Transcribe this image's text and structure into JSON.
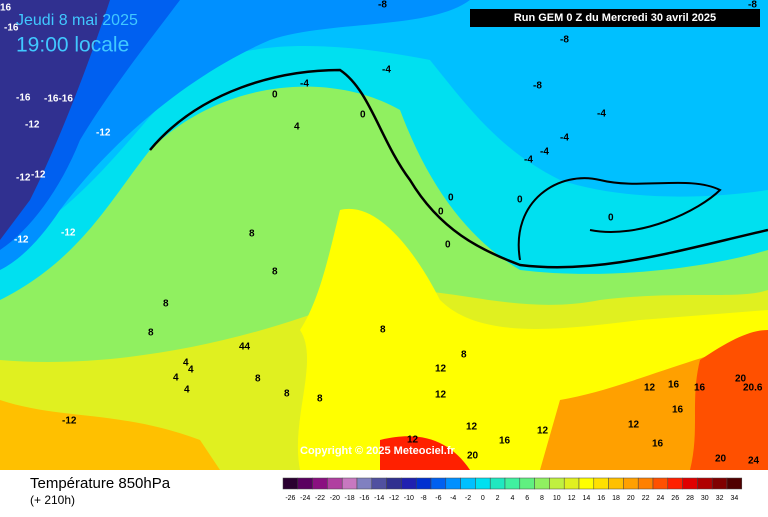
{
  "header": {
    "date": "Jeudi 8 mai 2025",
    "time": "19:00 locale",
    "run": "Run GEM 0 Z du Mercredi 30 avril 2025"
  },
  "map": {
    "copyright": "Copyright © 2025 Meteociel.fr",
    "labels": [
      "16",
      "-16",
      "-8",
      "-8",
      "-8",
      "-8",
      "-4",
      "-4",
      "-16",
      "-16-16",
      "-12",
      "-12",
      "-12",
      "-12",
      "-12",
      "-12",
      "0",
      "0",
      "4",
      "0",
      "-4",
      "-4",
      "-4",
      "-4",
      "0",
      "0",
      "0",
      "0",
      "8",
      "8",
      "8",
      "8",
      "4",
      "4",
      "4",
      "4",
      "44",
      "8",
      "8",
      "8",
      "8",
      "8",
      "12",
      "12",
      "12",
      "12",
      "12",
      "16",
      "16",
      "16",
      "16",
      "20",
      "20",
      "24",
      "20.6",
      "16",
      "12",
      "-12",
      "12",
      "20"
    ]
  },
  "legend": {
    "title": "Température 850hPa",
    "subtitle": "(+ 210h)",
    "scale": {
      "values": [
        -26,
        -24,
        -22,
        -20,
        -18,
        -16,
        -14,
        -12,
        -10,
        -8,
        -6,
        -4,
        -2,
        0,
        2,
        4,
        6,
        8,
        10,
        12,
        14,
        16,
        18,
        20,
        22,
        24,
        26,
        28,
        30,
        32,
        34
      ],
      "colors": [
        "#2a0030",
        "#5a0060",
        "#8a1080",
        "#b040a0",
        "#c878c0",
        "#8080c0",
        "#5050a0",
        "#303090",
        "#2020b0",
        "#0030d0",
        "#0060f0",
        "#0090ff",
        "#00c0ff",
        "#00e0f0",
        "#20e8c0",
        "#40f0a0",
        "#60f080",
        "#90f060",
        "#c0f040",
        "#e0f020",
        "#ffff00",
        "#ffe000",
        "#ffc000",
        "#ffa000",
        "#ff8000",
        "#ff5000",
        "#ff2000",
        "#e00000",
        "#b00000",
        "#800000",
        "#500000"
      ]
    }
  }
}
